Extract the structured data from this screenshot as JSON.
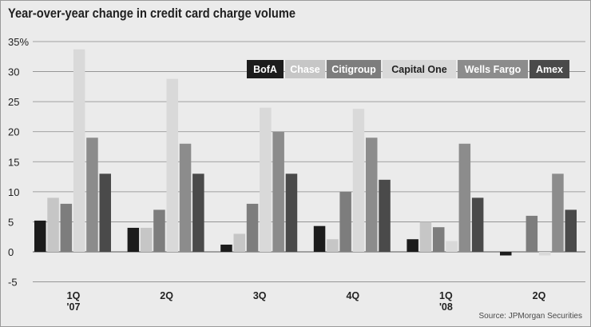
{
  "title": "Year-over-year change in credit card charge volume",
  "source": "Source: JPMorgan Securities",
  "chart_data": {
    "type": "bar",
    "title": "Year-over-year change in credit card charge volume",
    "xlabel": "",
    "ylabel": "",
    "ylim": [
      -5,
      35
    ],
    "yticks": [
      -5,
      0,
      5,
      10,
      15,
      20,
      25,
      30,
      35
    ],
    "ytick_labels": [
      "-5",
      "0",
      "5",
      "10",
      "15",
      "20",
      "25",
      "30",
      "35%"
    ],
    "grid": true,
    "legend_position": "top-right",
    "categories": [
      [
        "1Q",
        "'07"
      ],
      [
        "2Q"
      ],
      [
        "3Q"
      ],
      [
        "4Q"
      ],
      [
        "1Q",
        "'08"
      ],
      [
        "2Q"
      ]
    ],
    "series": [
      {
        "name": "BofA",
        "color": "#1c1c1c",
        "values": [
          5.2,
          4.0,
          1.2,
          4.3,
          2.1,
          -0.6
        ]
      },
      {
        "name": "Chase",
        "color": "#c6c6c6",
        "values": [
          9.0,
          4.0,
          3.0,
          2.1,
          5.0,
          null
        ]
      },
      {
        "name": "Citigroup",
        "color": "#7d7d7d",
        "values": [
          8.0,
          7.0,
          8.0,
          10.0,
          4.1,
          6.0
        ]
      },
      {
        "name": "Capital One",
        "color": "#d9d9d9",
        "values": [
          33.7,
          28.8,
          24.0,
          23.8,
          1.8,
          -0.6
        ]
      },
      {
        "name": "Wells Fargo",
        "color": "#8c8c8c",
        "values": [
          19.0,
          18.0,
          20.0,
          19.0,
          18.0,
          13.0
        ]
      },
      {
        "name": "Amex",
        "color": "#4a4a4a",
        "values": [
          13.0,
          13.0,
          13.0,
          12.0,
          9.0,
          7.0
        ]
      }
    ]
  }
}
